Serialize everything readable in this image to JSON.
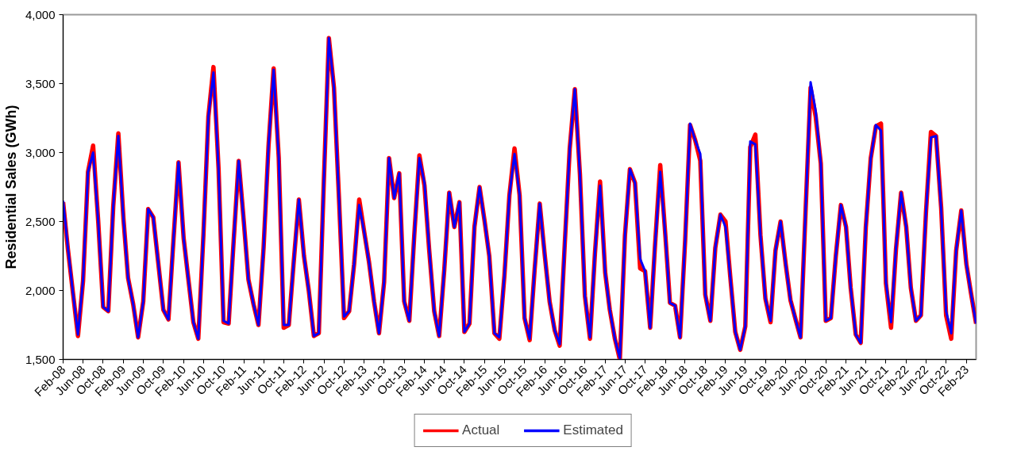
{
  "chart_data": {
    "type": "line",
    "ylabel": "Residential Sales (GWh)",
    "x": [
      "2008-02",
      "2008-03",
      "2008-04",
      "2008-05",
      "2008-06",
      "2008-07",
      "2008-08",
      "2008-09",
      "2008-10",
      "2008-11",
      "2008-12",
      "2009-01",
      "2009-02",
      "2009-03",
      "2009-04",
      "2009-05",
      "2009-06",
      "2009-07",
      "2009-08",
      "2009-09",
      "2009-10",
      "2009-11",
      "2009-12",
      "2010-01",
      "2010-02",
      "2010-03",
      "2010-04",
      "2010-05",
      "2010-06",
      "2010-07",
      "2010-08",
      "2010-09",
      "2010-10",
      "2010-11",
      "2010-12",
      "2011-01",
      "2011-02",
      "2011-03",
      "2011-04",
      "2011-05",
      "2011-06",
      "2011-07",
      "2011-08",
      "2011-09",
      "2011-10",
      "2011-11",
      "2011-12",
      "2012-01",
      "2012-02",
      "2012-03",
      "2012-04",
      "2012-05",
      "2012-06",
      "2012-07",
      "2012-08",
      "2012-09",
      "2012-10",
      "2012-11",
      "2012-12",
      "2013-01",
      "2013-02",
      "2013-03",
      "2013-04",
      "2013-05",
      "2013-06",
      "2013-07",
      "2013-08",
      "2013-09",
      "2013-10",
      "2013-11",
      "2013-12",
      "2014-01",
      "2014-02",
      "2014-03",
      "2014-04",
      "2014-05",
      "2014-06",
      "2014-07",
      "2014-08",
      "2014-09",
      "2014-10",
      "2014-11",
      "2014-12",
      "2015-01",
      "2015-02",
      "2015-03",
      "2015-04",
      "2015-05",
      "2015-06",
      "2015-07",
      "2015-08",
      "2015-09",
      "2015-10",
      "2015-11",
      "2015-12",
      "2016-01",
      "2016-02",
      "2016-03",
      "2016-04",
      "2016-05",
      "2016-06",
      "2016-07",
      "2016-08",
      "2016-09",
      "2016-10",
      "2016-11",
      "2016-12",
      "2017-01",
      "2017-02",
      "2017-03",
      "2017-04",
      "2017-05",
      "2017-06",
      "2017-07",
      "2017-08",
      "2017-09",
      "2017-10",
      "2017-11",
      "2017-12",
      "2018-01",
      "2018-02",
      "2018-03",
      "2018-04",
      "2018-05",
      "2018-06",
      "2018-07",
      "2018-08",
      "2018-09",
      "2018-10",
      "2018-11",
      "2018-12",
      "2019-01",
      "2019-02",
      "2019-03",
      "2019-04",
      "2019-05",
      "2019-06",
      "2019-07",
      "2019-08",
      "2019-09",
      "2019-10",
      "2019-11",
      "2019-12",
      "2020-01",
      "2020-02",
      "2020-03",
      "2020-04",
      "2020-05",
      "2020-06",
      "2020-07",
      "2020-08",
      "2020-09",
      "2020-10",
      "2020-11",
      "2020-12",
      "2021-01",
      "2021-02",
      "2021-03",
      "2021-04",
      "2021-05",
      "2021-06",
      "2021-07",
      "2021-08",
      "2021-09",
      "2021-10",
      "2021-11",
      "2021-12",
      "2022-01",
      "2022-02",
      "2022-03",
      "2022-04",
      "2022-05",
      "2022-06",
      "2022-07",
      "2022-08",
      "2022-09",
      "2022-10",
      "2022-11",
      "2022-12",
      "2023-01",
      "2023-02",
      "2023-03",
      "2023-04"
    ],
    "series": [
      {
        "name": "Actual",
        "color": "#ff0000",
        "values": [
          2640,
          2300,
          1980,
          1670,
          2070,
          2860,
          3050,
          2500,
          1880,
          1850,
          2610,
          3140,
          2520,
          2090,
          1900,
          1660,
          1920,
          2590,
          2530,
          2190,
          1860,
          1790,
          2360,
          2930,
          2380,
          2090,
          1770,
          1650,
          2400,
          3260,
          3620,
          2880,
          1770,
          1760,
          2350,
          2940,
          2500,
          2080,
          1900,
          1750,
          2310,
          3050,
          3610,
          2960,
          1730,
          1750,
          2210,
          2660,
          2250,
          2000,
          1670,
          1690,
          2810,
          3830,
          3470,
          2650,
          1800,
          1850,
          2190,
          2660,
          2420,
          2210,
          1920,
          1690,
          2060,
          2960,
          2670,
          2850,
          1920,
          1780,
          2400,
          2980,
          2760,
          2300,
          1850,
          1670,
          2150,
          2710,
          2460,
          2640,
          1700,
          1760,
          2460,
          2750,
          2500,
          2250,
          1690,
          1650,
          2110,
          2690,
          3030,
          2690,
          1800,
          1640,
          2150,
          2630,
          2250,
          1920,
          1710,
          1600,
          2340,
          3030,
          3460,
          2840,
          1960,
          1650,
          2270,
          2790,
          2130,
          1860,
          1650,
          1500,
          2400,
          2880,
          2780,
          2160,
          2140,
          1730,
          2340,
          2910,
          2400,
          1910,
          1890,
          1660,
          2360,
          3200,
          3090,
          2940,
          1970,
          1780,
          2310,
          2550,
          2500,
          2110,
          1700,
          1570,
          1740,
          3040,
          3130,
          2400,
          1940,
          1770,
          2290,
          2500,
          2190,
          1930,
          1790,
          1660,
          2590,
          3470,
          3260,
          2920,
          1780,
          1800,
          2250,
          2620,
          2460,
          2020,
          1680,
          1620,
          2460,
          2960,
          3190,
          3210,
          2050,
          1730,
          2300,
          2710,
          2460,
          2020,
          1780,
          1820,
          2570,
          3150,
          3120,
          2600,
          1820,
          1650,
          2290,
          2580,
          2190,
          1980,
          1760
        ]
      },
      {
        "name": "Estimated",
        "color": "#0000ff",
        "values": [
          2650,
          2310,
          1980,
          1680,
          2080,
          2860,
          3000,
          2500,
          1880,
          1850,
          2610,
          3120,
          2520,
          2090,
          1900,
          1660,
          1920,
          2590,
          2530,
          2190,
          1860,
          1790,
          2360,
          2930,
          2380,
          2090,
          1770,
          1650,
          2400,
          3260,
          3580,
          2880,
          1780,
          1760,
          2350,
          2940,
          2500,
          2080,
          1900,
          1750,
          2310,
          3050,
          3600,
          2960,
          1750,
          1750,
          2210,
          2660,
          2250,
          2000,
          1670,
          1690,
          2810,
          3830,
          3470,
          2650,
          1810,
          1850,
          2190,
          2620,
          2420,
          2210,
          1920,
          1690,
          2060,
          2960,
          2670,
          2850,
          1920,
          1780,
          2400,
          2960,
          2780,
          2310,
          1850,
          1670,
          2150,
          2710,
          2460,
          2640,
          1700,
          1760,
          2460,
          2750,
          2500,
          2250,
          1690,
          1660,
          2110,
          2690,
          2990,
          2690,
          1800,
          1650,
          2150,
          2630,
          2250,
          1920,
          1710,
          1610,
          2340,
          3030,
          3460,
          2840,
          1960,
          1660,
          2270,
          2760,
          2130,
          1860,
          1650,
          1510,
          2400,
          2880,
          2780,
          2230,
          2140,
          1730,
          2340,
          2860,
          2400,
          1910,
          1890,
          1660,
          2360,
          3210,
          3090,
          2990,
          1970,
          1780,
          2310,
          2550,
          2460,
          2110,
          1700,
          1570,
          1740,
          3080,
          3060,
          2400,
          1940,
          1780,
          2290,
          2500,
          2190,
          1930,
          1790,
          1660,
          2590,
          3510,
          3300,
          2920,
          1780,
          1800,
          2250,
          2620,
          2460,
          2020,
          1680,
          1620,
          2460,
          2960,
          3200,
          3160,
          2060,
          1770,
          2310,
          2710,
          2460,
          2020,
          1780,
          1820,
          2570,
          3110,
          3120,
          2590,
          1850,
          1690,
          2290,
          2580,
          2190,
          1980,
          1760
        ]
      }
    ],
    "xlim": [
      "2008-02",
      "2023-04"
    ],
    "xticks": [
      {
        "value": "2008-02",
        "label": "Feb-08"
      },
      {
        "value": "2008-06",
        "label": "Jun-08"
      },
      {
        "value": "2008-10",
        "label": "Oct-08"
      },
      {
        "value": "2009-02",
        "label": "Feb-09"
      },
      {
        "value": "2009-06",
        "label": "Jun-09"
      },
      {
        "value": "2009-10",
        "label": "Oct-09"
      },
      {
        "value": "2010-02",
        "label": "Feb-10"
      },
      {
        "value": "2010-06",
        "label": "Jun-10"
      },
      {
        "value": "2010-10",
        "label": "Oct-10"
      },
      {
        "value": "2011-02",
        "label": "Feb-11"
      },
      {
        "value": "2011-06",
        "label": "Jun-11"
      },
      {
        "value": "2011-10",
        "label": "Oct-11"
      },
      {
        "value": "2012-02",
        "label": "Feb-12"
      },
      {
        "value": "2012-06",
        "label": "Jun-12"
      },
      {
        "value": "2012-10",
        "label": "Oct-12"
      },
      {
        "value": "2013-02",
        "label": "Feb-13"
      },
      {
        "value": "2013-06",
        "label": "Jun-13"
      },
      {
        "value": "2013-10",
        "label": "Oct-13"
      },
      {
        "value": "2014-02",
        "label": "Feb-14"
      },
      {
        "value": "2014-06",
        "label": "Jun-14"
      },
      {
        "value": "2014-10",
        "label": "Oct-14"
      },
      {
        "value": "2015-02",
        "label": "Feb-15"
      },
      {
        "value": "2015-06",
        "label": "Jun-15"
      },
      {
        "value": "2015-10",
        "label": "Oct-15"
      },
      {
        "value": "2016-02",
        "label": "Feb-16"
      },
      {
        "value": "2016-06",
        "label": "Jun-16"
      },
      {
        "value": "2016-10",
        "label": "Oct-16"
      },
      {
        "value": "2017-02",
        "label": "Feb-17"
      },
      {
        "value": "2017-06",
        "label": "Jun-17"
      },
      {
        "value": "2017-10",
        "label": "Oct-17"
      },
      {
        "value": "2018-02",
        "label": "Feb-18"
      },
      {
        "value": "2018-06",
        "label": "Jun-18"
      },
      {
        "value": "2018-10",
        "label": "Oct-18"
      },
      {
        "value": "2019-02",
        "label": "Feb-19"
      },
      {
        "value": "2019-06",
        "label": "Jun-19"
      },
      {
        "value": "2019-10",
        "label": "Oct-19"
      },
      {
        "value": "2020-02",
        "label": "Feb-20"
      },
      {
        "value": "2020-06",
        "label": "Jun-20"
      },
      {
        "value": "2020-10",
        "label": "Oct-20"
      },
      {
        "value": "2021-02",
        "label": "Feb-21"
      },
      {
        "value": "2021-06",
        "label": "Jun-21"
      },
      {
        "value": "2021-10",
        "label": "Oct-21"
      },
      {
        "value": "2022-02",
        "label": "Feb-22"
      },
      {
        "value": "2022-06",
        "label": "Jun-22"
      },
      {
        "value": "2022-10",
        "label": "Oct-22"
      },
      {
        "value": "2023-02",
        "label": "Feb-23"
      }
    ],
    "ylim": [
      1500,
      4000
    ],
    "yticks": [
      {
        "value": 1500,
        "label": "1,500"
      },
      {
        "value": 2000,
        "label": "2,000"
      },
      {
        "value": 2500,
        "label": "2,500"
      },
      {
        "value": 3000,
        "label": "3,000"
      },
      {
        "value": 3500,
        "label": "3,500"
      },
      {
        "value": 4000,
        "label": "4,000"
      }
    ],
    "grid": false,
    "legend": "bottom",
    "marker": "none",
    "line_style": "solid"
  }
}
